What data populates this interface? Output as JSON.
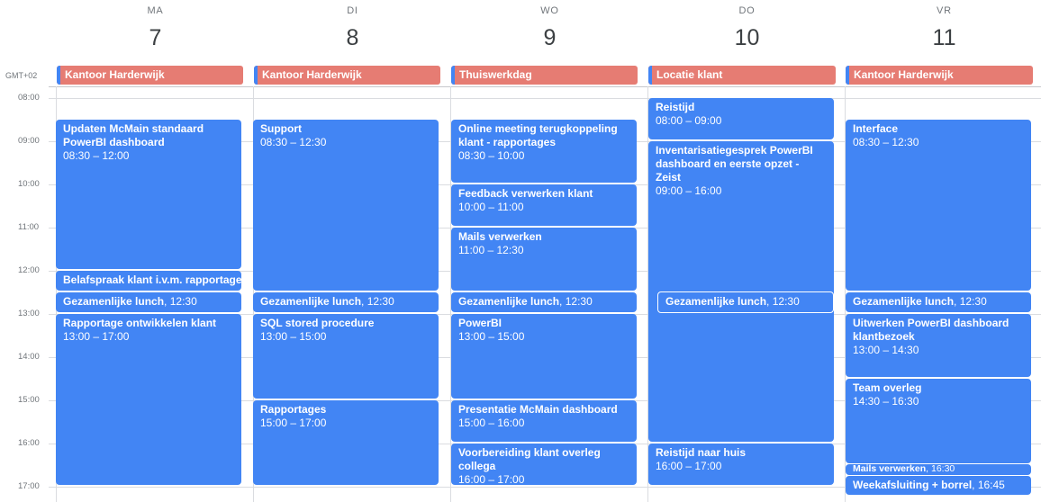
{
  "days": [
    {
      "name": "MA",
      "num": "7"
    },
    {
      "name": "DI",
      "num": "8"
    },
    {
      "name": "WO",
      "num": "9"
    },
    {
      "name": "DO",
      "num": "10"
    },
    {
      "name": "VR",
      "num": "11"
    }
  ],
  "timezone": "GMT+02",
  "hours": [
    "08:00",
    "09:00",
    "10:00",
    "11:00",
    "12:00",
    "13:00",
    "14:00",
    "15:00",
    "16:00",
    "17:00"
  ],
  "allday": [
    "Kantoor Harderwijk",
    "Kantoor Harderwijk",
    "Thuiswerkdag",
    "Locatie klant",
    "Kantoor Harderwijk"
  ],
  "colors": {
    "event": "#4285f4",
    "allday": "#e67c73",
    "grid": "#dadce0"
  },
  "events": {
    "ma": [
      {
        "title": "Updaten McMain standaard PowerBI dashboard",
        "time": "08:30 – 12:00"
      },
      {
        "title": "Belafspraak klant i.v.m. rapportage,",
        "time": ""
      },
      {
        "title": "Gezamenlijke lunch",
        "time": "12:30"
      },
      {
        "title": "Rapportage ontwikkelen klant",
        "time": "13:00 – 17:00"
      }
    ],
    "di": [
      {
        "title": "Support",
        "time": "08:30 – 12:30"
      },
      {
        "title": "Gezamenlijke lunch",
        "time": "12:30"
      },
      {
        "title": "SQL stored procedure",
        "time": "13:00 – 15:00"
      },
      {
        "title": "Rapportages",
        "time": "15:00 – 17:00"
      }
    ],
    "wo": [
      {
        "title": "Online meeting terugkoppeling klant - rapportages",
        "time": "08:30 – 10:00"
      },
      {
        "title": "Feedback verwerken klant",
        "time": "10:00 – 11:00"
      },
      {
        "title": "Mails verwerken",
        "time": "11:00 – 12:30"
      },
      {
        "title": "Gezamenlijke lunch",
        "time": "12:30"
      },
      {
        "title": "PowerBI",
        "time": "13:00 – 15:00"
      },
      {
        "title": "Presentatie McMain dashboard",
        "time": "15:00 – 16:00"
      },
      {
        "title": "Voorbereiding klant overleg collega",
        "time": "16:00 – 17:00"
      }
    ],
    "do": [
      {
        "title": "Reistijd",
        "time": "08:00 – 09:00"
      },
      {
        "title": "Inventarisatiegesprek PowerBI dashboard en eerste opzet - Zeist",
        "time": "09:00 – 16:00"
      },
      {
        "title": "Gezamenlijke lunch",
        "time": "12:30"
      },
      {
        "title": "Reistijd naar huis",
        "time": "16:00 – 17:00"
      }
    ],
    "vr": [
      {
        "title": "Interface",
        "time": "08:30 – 12:30"
      },
      {
        "title": "Gezamenlijke lunch",
        "time": "12:30"
      },
      {
        "title": "Uitwerken PowerBI dashboard klantbezoek",
        "time": "13:00 – 14:30"
      },
      {
        "title": "Team overleg",
        "time": "14:30 – 16:30"
      },
      {
        "title": "Mails verwerken",
        "time": "16:30"
      },
      {
        "title": "Weekafsluiting + borrel",
        "time": "16:45"
      }
    ]
  }
}
